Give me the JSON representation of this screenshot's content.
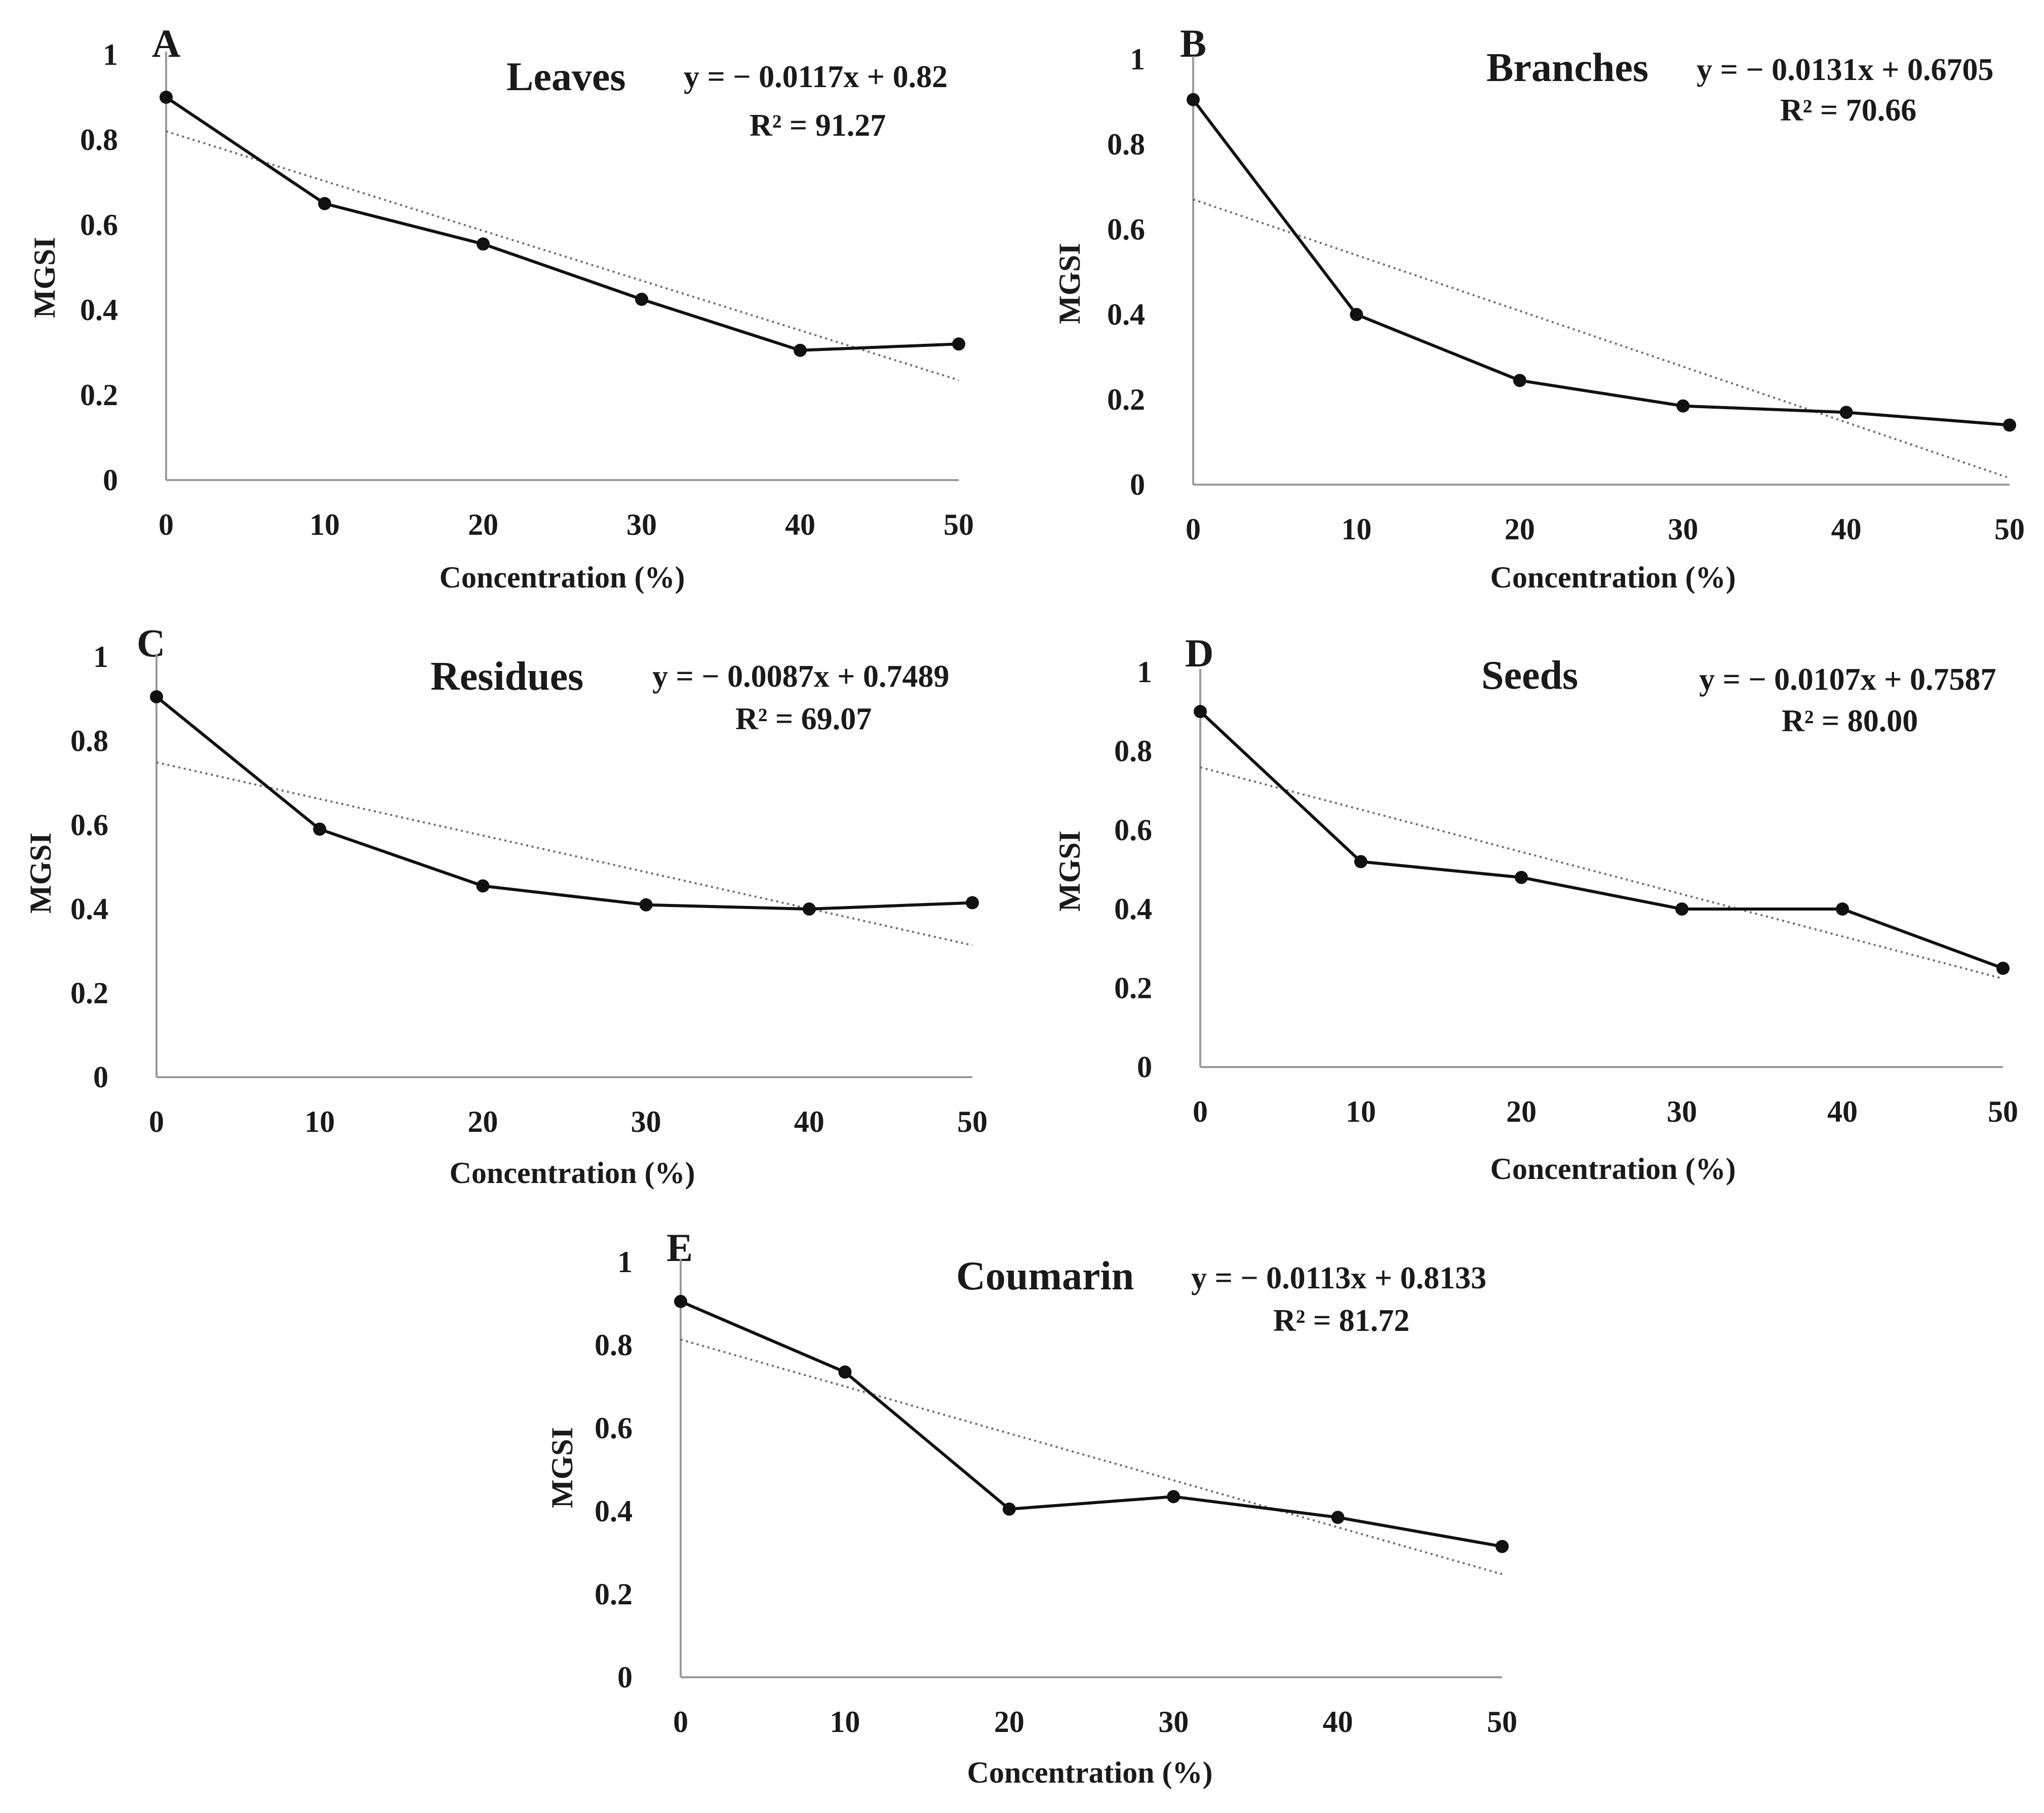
{
  "chart_data": [
    {
      "panel": "A",
      "type": "line",
      "title": "Leaves",
      "equation": "y = − 0.0117x + 0.82",
      "r2": "R² = 91.27",
      "x": [
        0,
        10,
        20,
        30,
        40,
        50
      ],
      "series": [
        {
          "name": "MGSI",
          "values": [
            0.9,
            0.65,
            0.555,
            0.425,
            0.305,
            0.32
          ]
        }
      ],
      "trendline": {
        "slope": -0.0117,
        "intercept": 0.82
      },
      "xlabel": "Concentration (%)",
      "ylabel": "MGSI",
      "xticks": [
        "0",
        "10",
        "20",
        "30",
        "40",
        "50"
      ],
      "yticks": [
        "0",
        "0.2",
        "0.4",
        "0.6",
        "0.8",
        "1"
      ],
      "xlim": [
        0,
        50
      ],
      "ylim": [
        0,
        1
      ]
    },
    {
      "panel": "B",
      "type": "line",
      "title": "Branches",
      "equation": "y = − 0.0131x + 0.6705",
      "r2": "R² = 70.66",
      "x": [
        0,
        10,
        20,
        30,
        40,
        50
      ],
      "series": [
        {
          "name": "MGSI",
          "values": [
            0.905,
            0.4,
            0.245,
            0.185,
            0.17,
            0.14
          ]
        }
      ],
      "trendline": {
        "slope": -0.0131,
        "intercept": 0.6705
      },
      "xlabel": "Concentration (%)",
      "ylabel": "MGSI",
      "xticks": [
        "0",
        "10",
        "20",
        "30",
        "40",
        "50"
      ],
      "yticks": [
        "0",
        "0.2",
        "0.4",
        "0.6",
        "0.8",
        "1"
      ],
      "xlim": [
        0,
        50
      ],
      "ylim": [
        0,
        1
      ]
    },
    {
      "panel": "C",
      "type": "line",
      "title": "Residues",
      "equation": "y = − 0.0087x + 0.7489",
      "r2": "R² = 69.07",
      "x": [
        0,
        10,
        20,
        30,
        40,
        50
      ],
      "series": [
        {
          "name": "MGSI",
          "values": [
            0.905,
            0.59,
            0.455,
            0.41,
            0.4,
            0.415
          ]
        }
      ],
      "trendline": {
        "slope": -0.0087,
        "intercept": 0.7489
      },
      "xlabel": "Concentration (%)",
      "ylabel": "MGSI",
      "xticks": [
        "0",
        "10",
        "20",
        "30",
        "40",
        "50"
      ],
      "yticks": [
        "0",
        "0.2",
        "0.4",
        "0.6",
        "0.8",
        "1"
      ],
      "xlim": [
        0,
        50
      ],
      "ylim": [
        0,
        1
      ]
    },
    {
      "panel": "D",
      "type": "line",
      "title": "Seeds",
      "equation": "y = − 0.0107x + 0.7587",
      "r2": "R² = 80.00",
      "x": [
        0,
        10,
        20,
        30,
        40,
        50
      ],
      "series": [
        {
          "name": "MGSI",
          "values": [
            0.9,
            0.52,
            0.48,
            0.4,
            0.4,
            0.25
          ]
        }
      ],
      "trendline": {
        "slope": -0.0107,
        "intercept": 0.7587
      },
      "xlabel": "Concentration (%)",
      "ylabel": "MGSI",
      "xticks": [
        "0",
        "10",
        "20",
        "30",
        "40",
        "50"
      ],
      "yticks": [
        "0",
        "0.2",
        "0.4",
        "0.6",
        "0.8",
        "1"
      ],
      "xlim": [
        0,
        50
      ],
      "ylim": [
        0,
        1
      ]
    },
    {
      "panel": "E",
      "type": "line",
      "title": "Coumarin",
      "equation": "y = − 0.0113x + 0.8133",
      "r2": "R² = 81.72",
      "x": [
        0,
        10,
        20,
        30,
        40,
        50
      ],
      "series": [
        {
          "name": "MGSI",
          "values": [
            0.905,
            0.735,
            0.405,
            0.435,
            0.385,
            0.315
          ]
        }
      ],
      "trendline": {
        "slope": -0.0113,
        "intercept": 0.8133
      },
      "xlabel": "Concentration (%)",
      "ylabel": "MGSI",
      "xticks": [
        "0",
        "10",
        "20",
        "30",
        "40",
        "50"
      ],
      "yticks": [
        "0",
        "0.2",
        "0.4",
        "0.6",
        "0.8",
        "1"
      ],
      "xlim": [
        0,
        50
      ],
      "ylim": [
        0,
        1
      ]
    }
  ]
}
